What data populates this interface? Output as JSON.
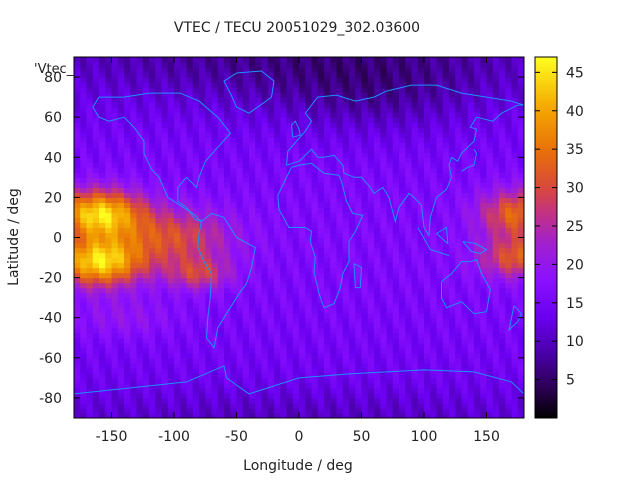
{
  "chart_data": {
    "type": "heatmap",
    "title": "VTEC / TECU 20051029_302.03600",
    "xlabel": "Longitude / deg",
    "ylabel": "Latitude / deg",
    "legend_label": "'Vtec_",
    "xlim": [
      -180,
      180
    ],
    "ylim": [
      -90,
      90
    ],
    "x_ticks": [
      -150,
      -100,
      -50,
      0,
      50,
      100,
      150
    ],
    "y_ticks": [
      -80,
      -60,
      -40,
      -20,
      0,
      20,
      40,
      60,
      80
    ],
    "colorbar": {
      "range": [
        0,
        47
      ],
      "ticks": [
        5,
        10,
        15,
        20,
        25,
        30,
        35,
        40,
        45
      ],
      "palette": [
        "#000000",
        "#3a0060",
        "#5a00c8",
        "#7a10ff",
        "#9a20f0",
        "#c02a9a",
        "#e04a2a",
        "#f08a0a",
        "#ffc800",
        "#ffff00"
      ]
    },
    "grid": false,
    "color_scale": "gnuplot pm3d (black-purple-red-yellow)",
    "map_outline_color": "#1e90ff",
    "high_regions_description": [
      "equatorial anomaly over eastern Pacific (~-180 to -60 lon, -30 to 25 lat) peaking ~45 TECU",
      "equatorial anomaly over western Pacific (~140 to 180 lon, -20 to 25 lat) ~35 TECU"
    ]
  }
}
